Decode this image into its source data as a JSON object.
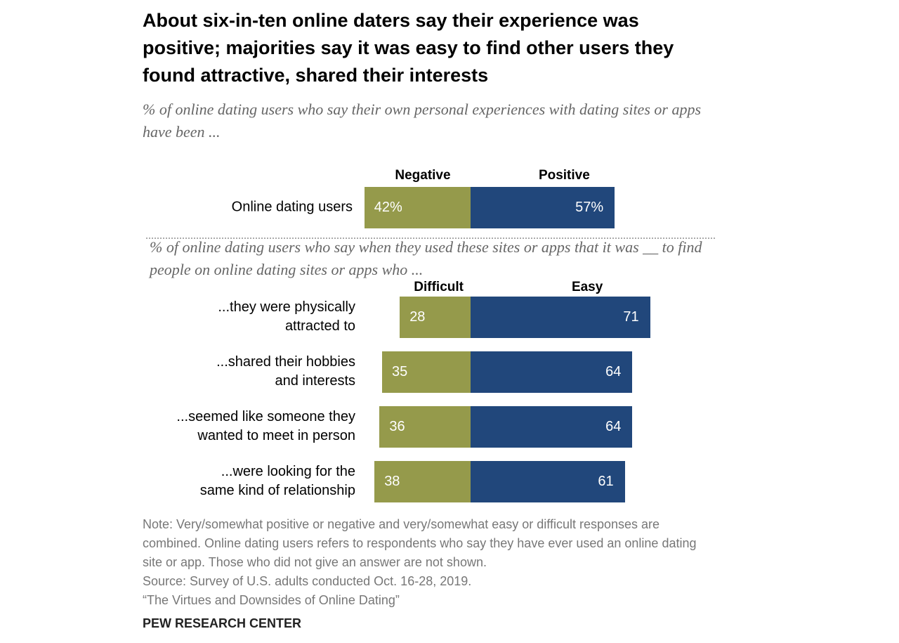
{
  "chart_data": [
    {
      "type": "diverging-bar",
      "title": "About six-in-ten online daters say their experience was positive; majorities say it was easy to find other users they found attractive, shared their interests",
      "subtitle": "% of online dating users who say their own personal experiences with dating sites or apps have been ...",
      "categories": [
        "Online dating users"
      ],
      "series": [
        {
          "name": "Negative",
          "color": "#959a4b",
          "values": [
            42
          ],
          "value_labels": [
            "42%"
          ]
        },
        {
          "name": "Positive",
          "color": "#21477b",
          "values": [
            57
          ],
          "value_labels": [
            "57%"
          ]
        }
      ]
    },
    {
      "type": "diverging-bar",
      "subtitle": "% of online dating users who say when they used these sites or apps that it was __ to find people on online dating sites or apps who ...",
      "categories": [
        "...they were physically\nattracted to",
        "...shared their hobbies\nand interests",
        "...seemed like someone they\nwanted to meet in person",
        "...were looking for the\nsame kind of relationship"
      ],
      "series": [
        {
          "name": "Difficult",
          "color": "#959a4b",
          "values": [
            28,
            35,
            36,
            38
          ]
        },
        {
          "name": "Easy",
          "color": "#21477b",
          "values": [
            71,
            64,
            64,
            61
          ]
        }
      ]
    }
  ],
  "note": "Note: Very/somewhat positive or negative and very/somewhat easy or difficult responses are combined. Online dating users refers to respondents who say they have ever used an online dating site or app. Those who did not give an answer are not shown.",
  "source": "Source: Survey of U.S. adults conducted Oct. 16-28, 2019.",
  "report": "“The Virtues and Downsides of Online Dating”",
  "organization": "PEW RESEARCH CENTER"
}
